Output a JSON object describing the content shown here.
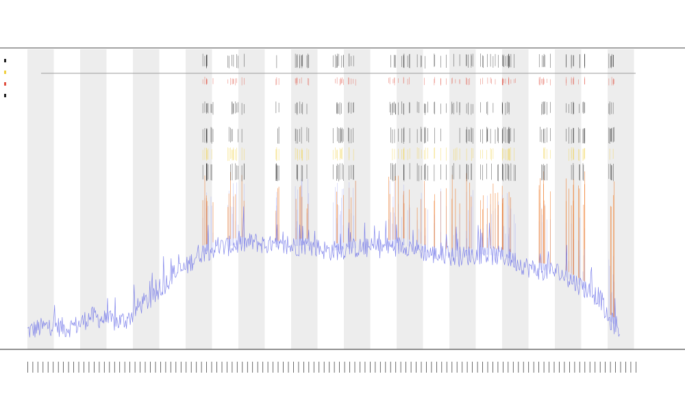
{
  "chart_data": {
    "type": "line",
    "title": "",
    "subtitle": "",
    "xlabel": "",
    "ylabel": "",
    "grid": true,
    "band_count": 12,
    "xlim": [
      0,
      1000
    ],
    "ylim": [
      0,
      100
    ],
    "baseline_series": {
      "name": "",
      "color": "#6a6ee8",
      "x": [
        0,
        20,
        40,
        60,
        80,
        100,
        120,
        140,
        160,
        180,
        200,
        215,
        230,
        250,
        270,
        300,
        330,
        360,
        400,
        440,
        480,
        520,
        560,
        600,
        640,
        680,
        720,
        760,
        800,
        840,
        880,
        910,
        920,
        940
      ],
      "y": [
        5,
        6,
        7,
        6,
        7,
        10,
        9,
        8,
        9,
        14,
        16,
        20,
        24,
        26,
        31,
        33,
        34,
        35,
        33,
        34,
        32,
        33,
        33,
        34,
        31,
        30,
        31,
        30,
        26,
        25,
        20,
        16,
        9,
        6
      ]
    },
    "spike_colors": [
      "#9aa0f0",
      "#ee7722",
      "#222222",
      "#f0d040",
      "#e05040"
    ],
    "tick_count": 120
  }
}
